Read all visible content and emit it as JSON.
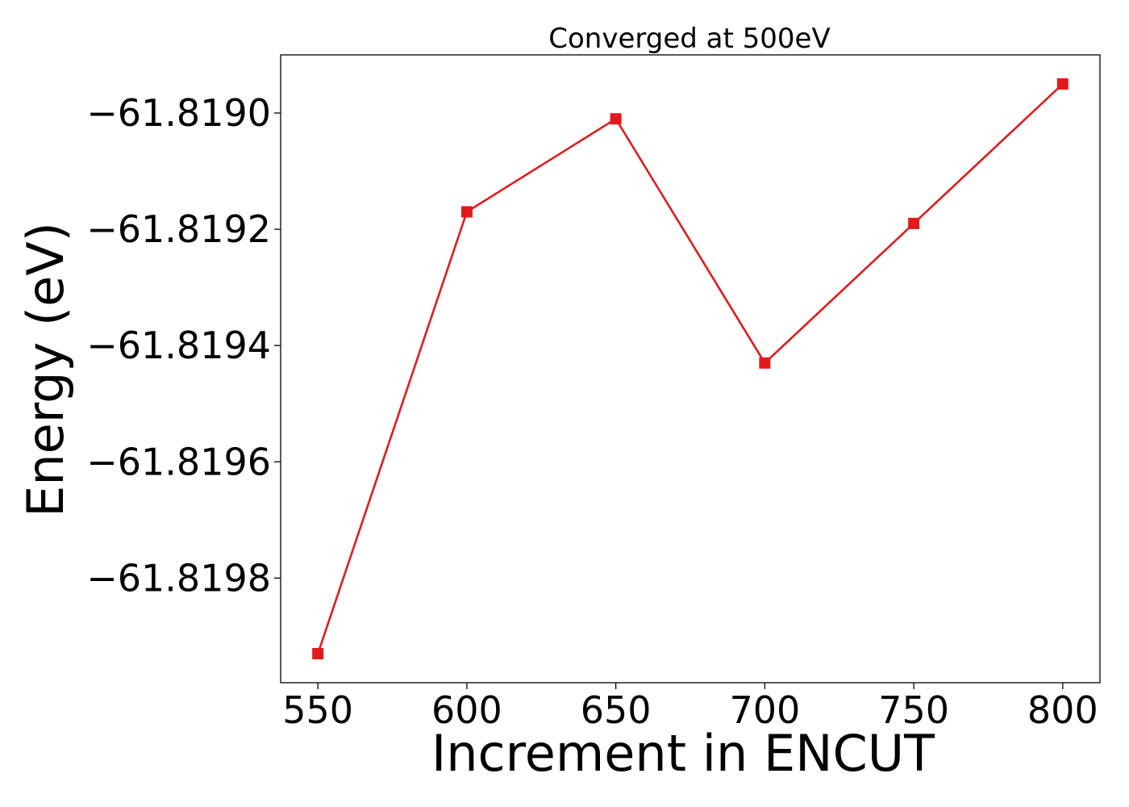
{
  "chart_data": {
    "type": "line",
    "title": "Converged at 500eV",
    "xlabel": "Increment in ENCUT",
    "ylabel": "Energy (eV)",
    "x": [
      550,
      600,
      650,
      700,
      750,
      800
    ],
    "series": [
      {
        "values": [
          -61.81993,
          -61.81917,
          -61.81901,
          -61.81943,
          -61.81919,
          -61.81895
        ],
        "color": "#e31a1c",
        "marker": "square"
      }
    ],
    "xticks": [
      550,
      600,
      650,
      700,
      750,
      800
    ],
    "xtick_labels": [
      "550",
      "600",
      "650",
      "700",
      "750",
      "800"
    ],
    "yticks": [
      -61.819,
      -61.8192,
      -61.8194,
      -61.8196,
      -61.8198
    ],
    "ytick_labels": [
      "−61.8190",
      "−61.8192",
      "−61.8194",
      "−61.8196",
      "−61.8198"
    ],
    "xlim": [
      537.5,
      812.5
    ],
    "ylim": [
      -61.81998,
      -61.8189
    ],
    "grid": false,
    "legend": false
  }
}
